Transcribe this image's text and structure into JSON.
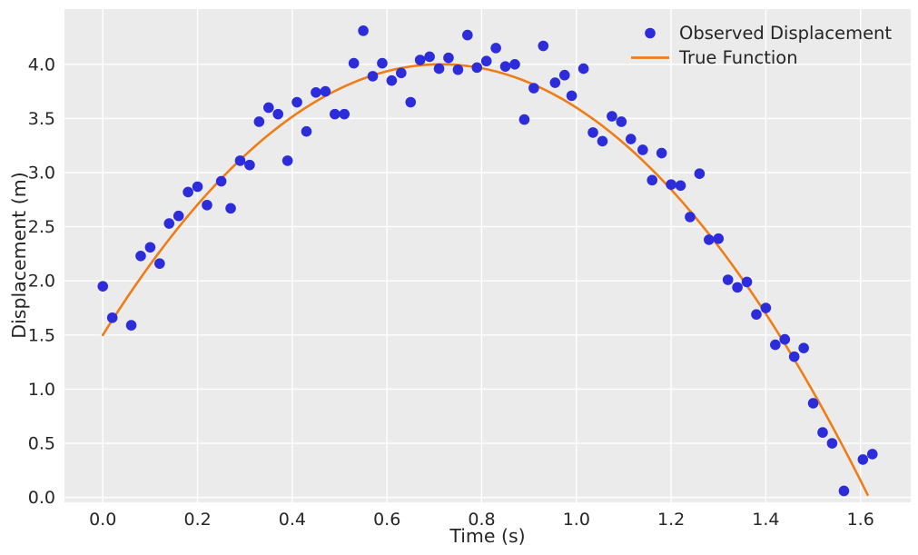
{
  "figure": {
    "background_color": "#ffffff",
    "plot_background_color": "#ebebeb",
    "grid_color": "#ffffff",
    "text_color": "#262626"
  },
  "chart_data": {
    "type": "scatter",
    "title": "",
    "xlabel": "Time (s)",
    "ylabel": "Displacement (m)",
    "xlim": [
      -0.081,
      1.706
    ],
    "ylim": [
      -0.045,
      4.51
    ],
    "xticks": [
      0.0,
      0.2,
      0.4,
      0.6,
      0.8,
      1.0,
      1.2,
      1.4,
      1.6
    ],
    "yticks": [
      0.0,
      0.5,
      1.0,
      1.5,
      2.0,
      2.5,
      3.0,
      3.5,
      4.0
    ],
    "grid": true,
    "legend_position": "upper right",
    "legend_frame": false,
    "series": [
      {
        "name": "Observed Displacement",
        "type": "scatter",
        "color": "#2c2cdb",
        "marker": "circle",
        "points": [
          [
            0.0,
            1.95
          ],
          [
            0.02,
            1.66
          ],
          [
            0.06,
            1.59
          ],
          [
            0.08,
            2.23
          ],
          [
            0.1,
            2.31
          ],
          [
            0.12,
            2.16
          ],
          [
            0.14,
            2.53
          ],
          [
            0.16,
            2.6
          ],
          [
            0.18,
            2.82
          ],
          [
            0.2,
            2.87
          ],
          [
            0.22,
            2.7
          ],
          [
            0.25,
            2.92
          ],
          [
            0.27,
            2.67
          ],
          [
            0.29,
            3.11
          ],
          [
            0.31,
            3.07
          ],
          [
            0.33,
            3.47
          ],
          [
            0.35,
            3.6
          ],
          [
            0.37,
            3.54
          ],
          [
            0.39,
            3.11
          ],
          [
            0.41,
            3.65
          ],
          [
            0.43,
            3.38
          ],
          [
            0.45,
            3.74
          ],
          [
            0.47,
            3.75
          ],
          [
            0.49,
            3.54
          ],
          [
            0.51,
            3.54
          ],
          [
            0.53,
            4.01
          ],
          [
            0.55,
            4.31
          ],
          [
            0.57,
            3.89
          ],
          [
            0.59,
            4.01
          ],
          [
            0.61,
            3.85
          ],
          [
            0.63,
            3.92
          ],
          [
            0.65,
            3.65
          ],
          [
            0.67,
            4.04
          ],
          [
            0.69,
            4.07
          ],
          [
            0.71,
            3.96
          ],
          [
            0.73,
            4.06
          ],
          [
            0.75,
            3.95
          ],
          [
            0.77,
            4.27
          ],
          [
            0.79,
            3.97
          ],
          [
            0.81,
            4.03
          ],
          [
            0.83,
            4.15
          ],
          [
            0.85,
            3.98
          ],
          [
            0.87,
            4.0
          ],
          [
            0.89,
            3.49
          ],
          [
            0.91,
            3.78
          ],
          [
            0.93,
            4.17
          ],
          [
            0.955,
            3.83
          ],
          [
            0.975,
            3.9
          ],
          [
            0.99,
            3.71
          ],
          [
            1.015,
            3.96
          ],
          [
            1.035,
            3.37
          ],
          [
            1.055,
            3.29
          ],
          [
            1.075,
            3.52
          ],
          [
            1.095,
            3.47
          ],
          [
            1.115,
            3.31
          ],
          [
            1.14,
            3.21
          ],
          [
            1.16,
            2.93
          ],
          [
            1.18,
            3.18
          ],
          [
            1.2,
            2.89
          ],
          [
            1.22,
            2.88
          ],
          [
            1.24,
            2.59
          ],
          [
            1.26,
            2.99
          ],
          [
            1.28,
            2.38
          ],
          [
            1.3,
            2.39
          ],
          [
            1.32,
            2.01
          ],
          [
            1.34,
            1.94
          ],
          [
            1.36,
            1.99
          ],
          [
            1.38,
            1.69
          ],
          [
            1.4,
            1.75
          ],
          [
            1.42,
            1.41
          ],
          [
            1.44,
            1.46
          ],
          [
            1.46,
            1.3
          ],
          [
            1.48,
            1.38
          ],
          [
            1.5,
            0.87
          ],
          [
            1.52,
            0.6
          ],
          [
            1.54,
            0.5
          ],
          [
            1.565,
            0.06
          ],
          [
            1.605,
            0.35
          ],
          [
            1.625,
            0.4
          ]
        ]
      },
      {
        "name": "True Function",
        "type": "line",
        "color": "#ef7d17",
        "function": "d(t) = 1.5 + 7.0*t - 4.9*t^2",
        "coefficients": {
          "intercept": 1.5,
          "linear": 7.0,
          "quadratic": -4.9
        },
        "t_range": [
          0.0,
          1.617
        ]
      }
    ]
  }
}
